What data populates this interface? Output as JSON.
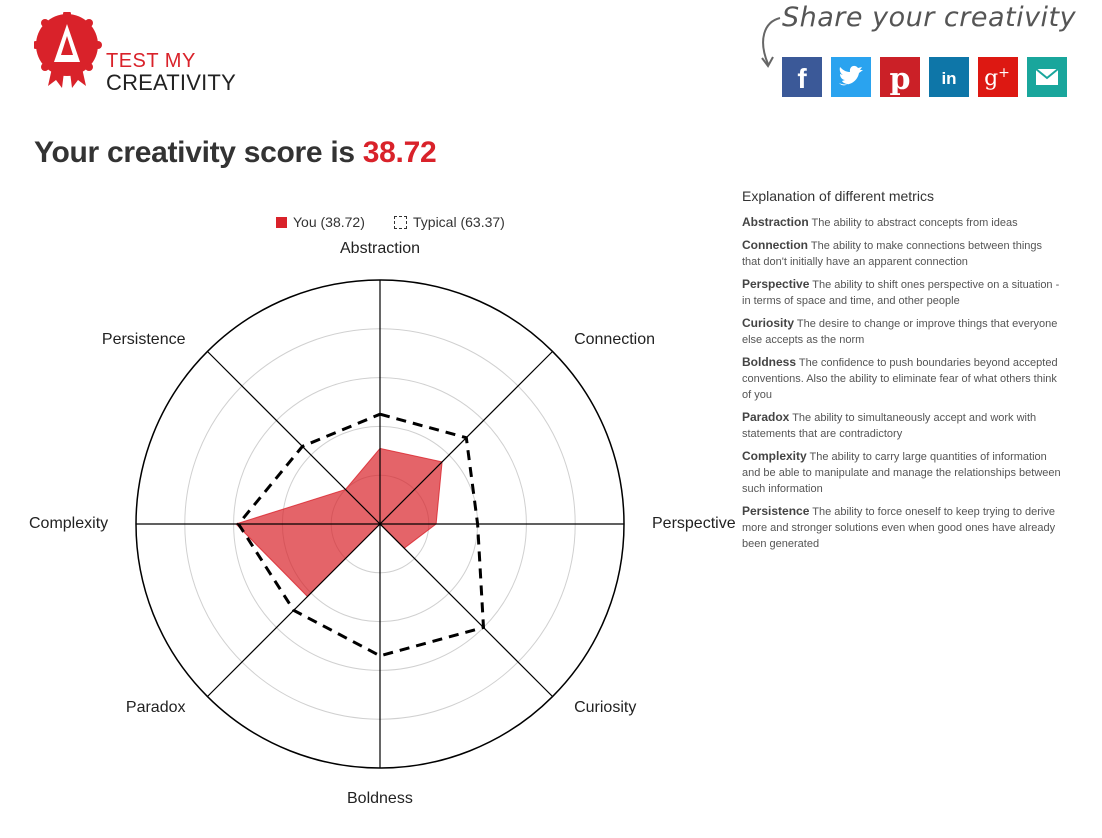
{
  "brand": {
    "line1": "TEST MY",
    "line2": "CREATIVITY",
    "badge_color": "#d9222a"
  },
  "share": {
    "title": "Share your creativity",
    "buttons": [
      {
        "name": "facebook",
        "icon": "facebook-icon",
        "color": "#3b5998"
      },
      {
        "name": "twitter",
        "icon": "twitter-icon",
        "color": "#2aa3ef"
      },
      {
        "name": "pinterest",
        "icon": "pinterest-icon",
        "color": "#cb2027"
      },
      {
        "name": "linkedin",
        "icon": "linkedin-icon",
        "color": "#0e76a8"
      },
      {
        "name": "googleplus",
        "icon": "google-plus-icon",
        "color": "#dd1812"
      },
      {
        "name": "email",
        "icon": "email-icon",
        "color": "#19a69c"
      }
    ]
  },
  "headline": {
    "prefix": "Your creativity score is ",
    "score": "38.72"
  },
  "legend": {
    "you": "You (38.72)",
    "typical": "Typical (63.37)"
  },
  "explanation": {
    "title": "Explanation of different metrics",
    "metrics": [
      {
        "name": "Abstraction",
        "text": "The ability to abstract concepts from ideas"
      },
      {
        "name": "Connection",
        "text": "The ability to make connections between things that don't initially have an apparent connection"
      },
      {
        "name": "Perspective",
        "text": "The ability to shift ones perspective on a situation - in terms of space and time, and other people"
      },
      {
        "name": "Curiosity",
        "text": "The desire to change or improve things that everyone else accepts as the norm"
      },
      {
        "name": "Boldness",
        "text": "The confidence to push boundaries beyond accepted conventions. Also the ability to eliminate fear of what others think of you"
      },
      {
        "name": "Paradox",
        "text": "The ability to simultaneously accept and work with statements that are contradictory"
      },
      {
        "name": "Complexity",
        "text": "The ability to carry large quantities of information and be able to manipulate and manage the relationships between such information"
      },
      {
        "name": "Persistence",
        "text": "The ability to force oneself to keep trying to derive more and stronger solutions even when good ones have already been generated"
      }
    ]
  },
  "chart_data": {
    "type": "radar",
    "categories": [
      "Abstraction",
      "Connection",
      "Perspective",
      "Curiosity",
      "Boldness",
      "Paradox",
      "Complexity",
      "Persistence"
    ],
    "series": [
      {
        "name": "You (38.72)",
        "values": [
          31,
          36,
          23,
          14,
          0,
          42,
          59,
          20
        ],
        "color": "#d9222a",
        "style": "filled"
      },
      {
        "name": "Typical (63.37)",
        "values": [
          45,
          50,
          40,
          60,
          54,
          50,
          58,
          45
        ],
        "color": "#000000",
        "style": "dashed"
      }
    ],
    "rlim": [
      0,
      100
    ],
    "rings": 5,
    "legend_position": "top"
  }
}
